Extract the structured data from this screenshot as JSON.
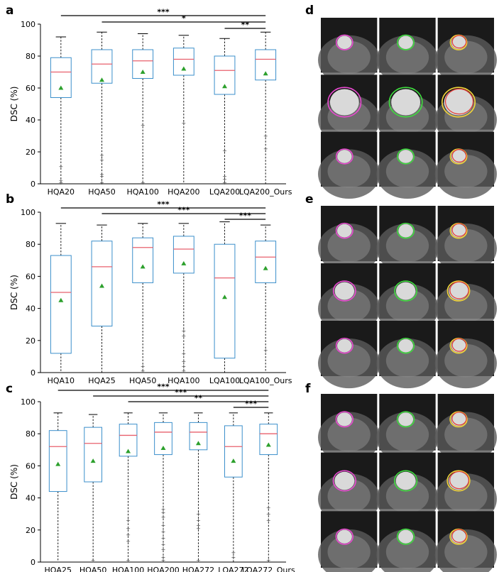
{
  "chart_data": [
    {
      "panel": "a",
      "type": "box",
      "ylabel": "DSC (%)",
      "ylim": [
        0,
        100
      ],
      "yticks": [
        "0",
        "20",
        "40",
        "60",
        "80",
        "100"
      ],
      "categories": [
        "HQA20",
        "HQA50",
        "HQA100",
        "HQA200",
        "LQA200",
        "LQA200_Ours"
      ],
      "boxes": [
        {
          "min": 0,
          "q1": 54,
          "median": 70,
          "q3": 79,
          "max": 92,
          "mean": 60,
          "fliers": [
            1,
            2,
            11
          ]
        },
        {
          "min": 0,
          "q1": 63,
          "median": 75,
          "q3": 84,
          "max": 95,
          "mean": 65,
          "fliers": [
            1,
            5,
            6,
            15,
            18
          ]
        },
        {
          "min": 0,
          "q1": 66,
          "median": 77,
          "q3": 84,
          "max": 94,
          "mean": 70,
          "fliers": [
            1,
            37
          ]
        },
        {
          "min": 0,
          "q1": 68,
          "median": 78,
          "q3": 85,
          "max": 93,
          "mean": 72,
          "fliers": [
            38
          ]
        },
        {
          "min": 0,
          "q1": 56,
          "median": 71,
          "q3": 80,
          "max": 91,
          "mean": 61,
          "fliers": [
            1,
            3,
            5,
            21
          ]
        },
        {
          "min": 0,
          "q1": 65,
          "median": 78,
          "q3": 84,
          "max": 95,
          "mean": 69,
          "fliers": [
            22,
            30
          ]
        }
      ],
      "significance": [
        {
          "from": 0,
          "to": 5,
          "label": "***"
        },
        {
          "from": 1,
          "to": 5,
          "label": "*"
        },
        {
          "from": 4,
          "to": 5,
          "label": "**"
        }
      ]
    },
    {
      "panel": "b",
      "type": "box",
      "ylabel": "DSC (%)",
      "ylim": [
        0,
        100
      ],
      "yticks": [
        "0",
        "20",
        "40",
        "60",
        "80",
        "100"
      ],
      "categories": [
        "HQA10",
        "HQA25",
        "HQA50",
        "HQA100",
        "LQA100",
        "LQA100_Ours"
      ],
      "boxes": [
        {
          "min": 0,
          "q1": 12,
          "median": 50,
          "q3": 73,
          "max": 93,
          "mean": 45,
          "fliers": []
        },
        {
          "min": 0,
          "q1": 29,
          "median": 66,
          "q3": 82,
          "max": 92,
          "mean": 54,
          "fliers": []
        },
        {
          "min": 0,
          "q1": 56,
          "median": 78,
          "q3": 84,
          "max": 93,
          "mean": 66,
          "fliers": [
            1,
            4
          ]
        },
        {
          "min": 0,
          "q1": 62,
          "median": 77,
          "q3": 85,
          "max": 93,
          "mean": 68,
          "fliers": [
            1,
            4,
            7,
            12,
            23,
            26
          ]
        },
        {
          "min": 0,
          "q1": 9,
          "median": 59,
          "q3": 80,
          "max": 94,
          "mean": 47,
          "fliers": []
        },
        {
          "min": 0,
          "q1": 56,
          "median": 72,
          "q3": 82,
          "max": 92,
          "mean": 65,
          "fliers": [
            14
          ]
        }
      ],
      "significance": [
        {
          "from": 0,
          "to": 5,
          "label": "***"
        },
        {
          "from": 1,
          "to": 5,
          "label": "***"
        },
        {
          "from": 4,
          "to": 5,
          "label": "***"
        }
      ]
    },
    {
      "panel": "c",
      "type": "box",
      "ylabel": "DSC (%)",
      "ylim": [
        0,
        100
      ],
      "yticks": [
        "0",
        "20",
        "40",
        "60",
        "80",
        "100"
      ],
      "categories": [
        "HQA25",
        "HQA50",
        "HQA100",
        "HQA200",
        "HQA272",
        "LQA272",
        "LQA272_Ours"
      ],
      "boxes": [
        {
          "min": 0,
          "q1": 44,
          "median": 72,
          "q3": 82,
          "max": 93,
          "mean": 61,
          "fliers": []
        },
        {
          "min": 0,
          "q1": 50,
          "median": 74,
          "q3": 84,
          "max": 92,
          "mean": 63,
          "fliers": [
            1
          ]
        },
        {
          "min": 0,
          "q1": 66,
          "median": 79,
          "q3": 86,
          "max": 93,
          "mean": 69,
          "fliers": [
            1,
            13,
            17,
            21,
            26
          ]
        },
        {
          "min": 0,
          "q1": 67,
          "median": 81,
          "q3": 87,
          "max": 93,
          "mean": 71,
          "fliers": [
            1,
            3,
            8,
            11,
            15,
            19,
            23,
            28,
            31,
            33
          ]
        },
        {
          "min": 0,
          "q1": 70,
          "median": 81,
          "q3": 87,
          "max": 93,
          "mean": 74,
          "fliers": [
            1,
            21,
            23,
            26,
            30
          ]
        },
        {
          "min": 0,
          "q1": 53,
          "median": 72,
          "q3": 85,
          "max": 93,
          "mean": 63,
          "fliers": [
            3,
            6
          ]
        },
        {
          "min": 0,
          "q1": 67,
          "median": 80,
          "q3": 86,
          "max": 93,
          "mean": 73,
          "fliers": [
            1,
            26,
            30,
            34
          ]
        }
      ],
      "significance": [
        {
          "from": 0,
          "to": 6,
          "label": "***"
        },
        {
          "from": 1,
          "to": 6,
          "label": "***"
        },
        {
          "from": 2,
          "to": 6,
          "label": "**"
        },
        {
          "from": 5,
          "to": 6,
          "label": "***"
        }
      ]
    }
  ],
  "image_panels": [
    {
      "label": "d",
      "rows": 3,
      "cols": 3,
      "contour_colors": [
        "#e84ad0",
        "#3fdc3f",
        "#f2d43a"
      ]
    },
    {
      "label": "e",
      "rows": 3,
      "cols": 3,
      "contour_colors": [
        "#e84ad0",
        "#3fdc3f",
        "#f2d43a"
      ]
    },
    {
      "label": "f",
      "rows": 3,
      "cols": 3,
      "contour_colors": [
        "#e84ad0",
        "#3fdc3f",
        "#f2d43a"
      ]
    }
  ]
}
